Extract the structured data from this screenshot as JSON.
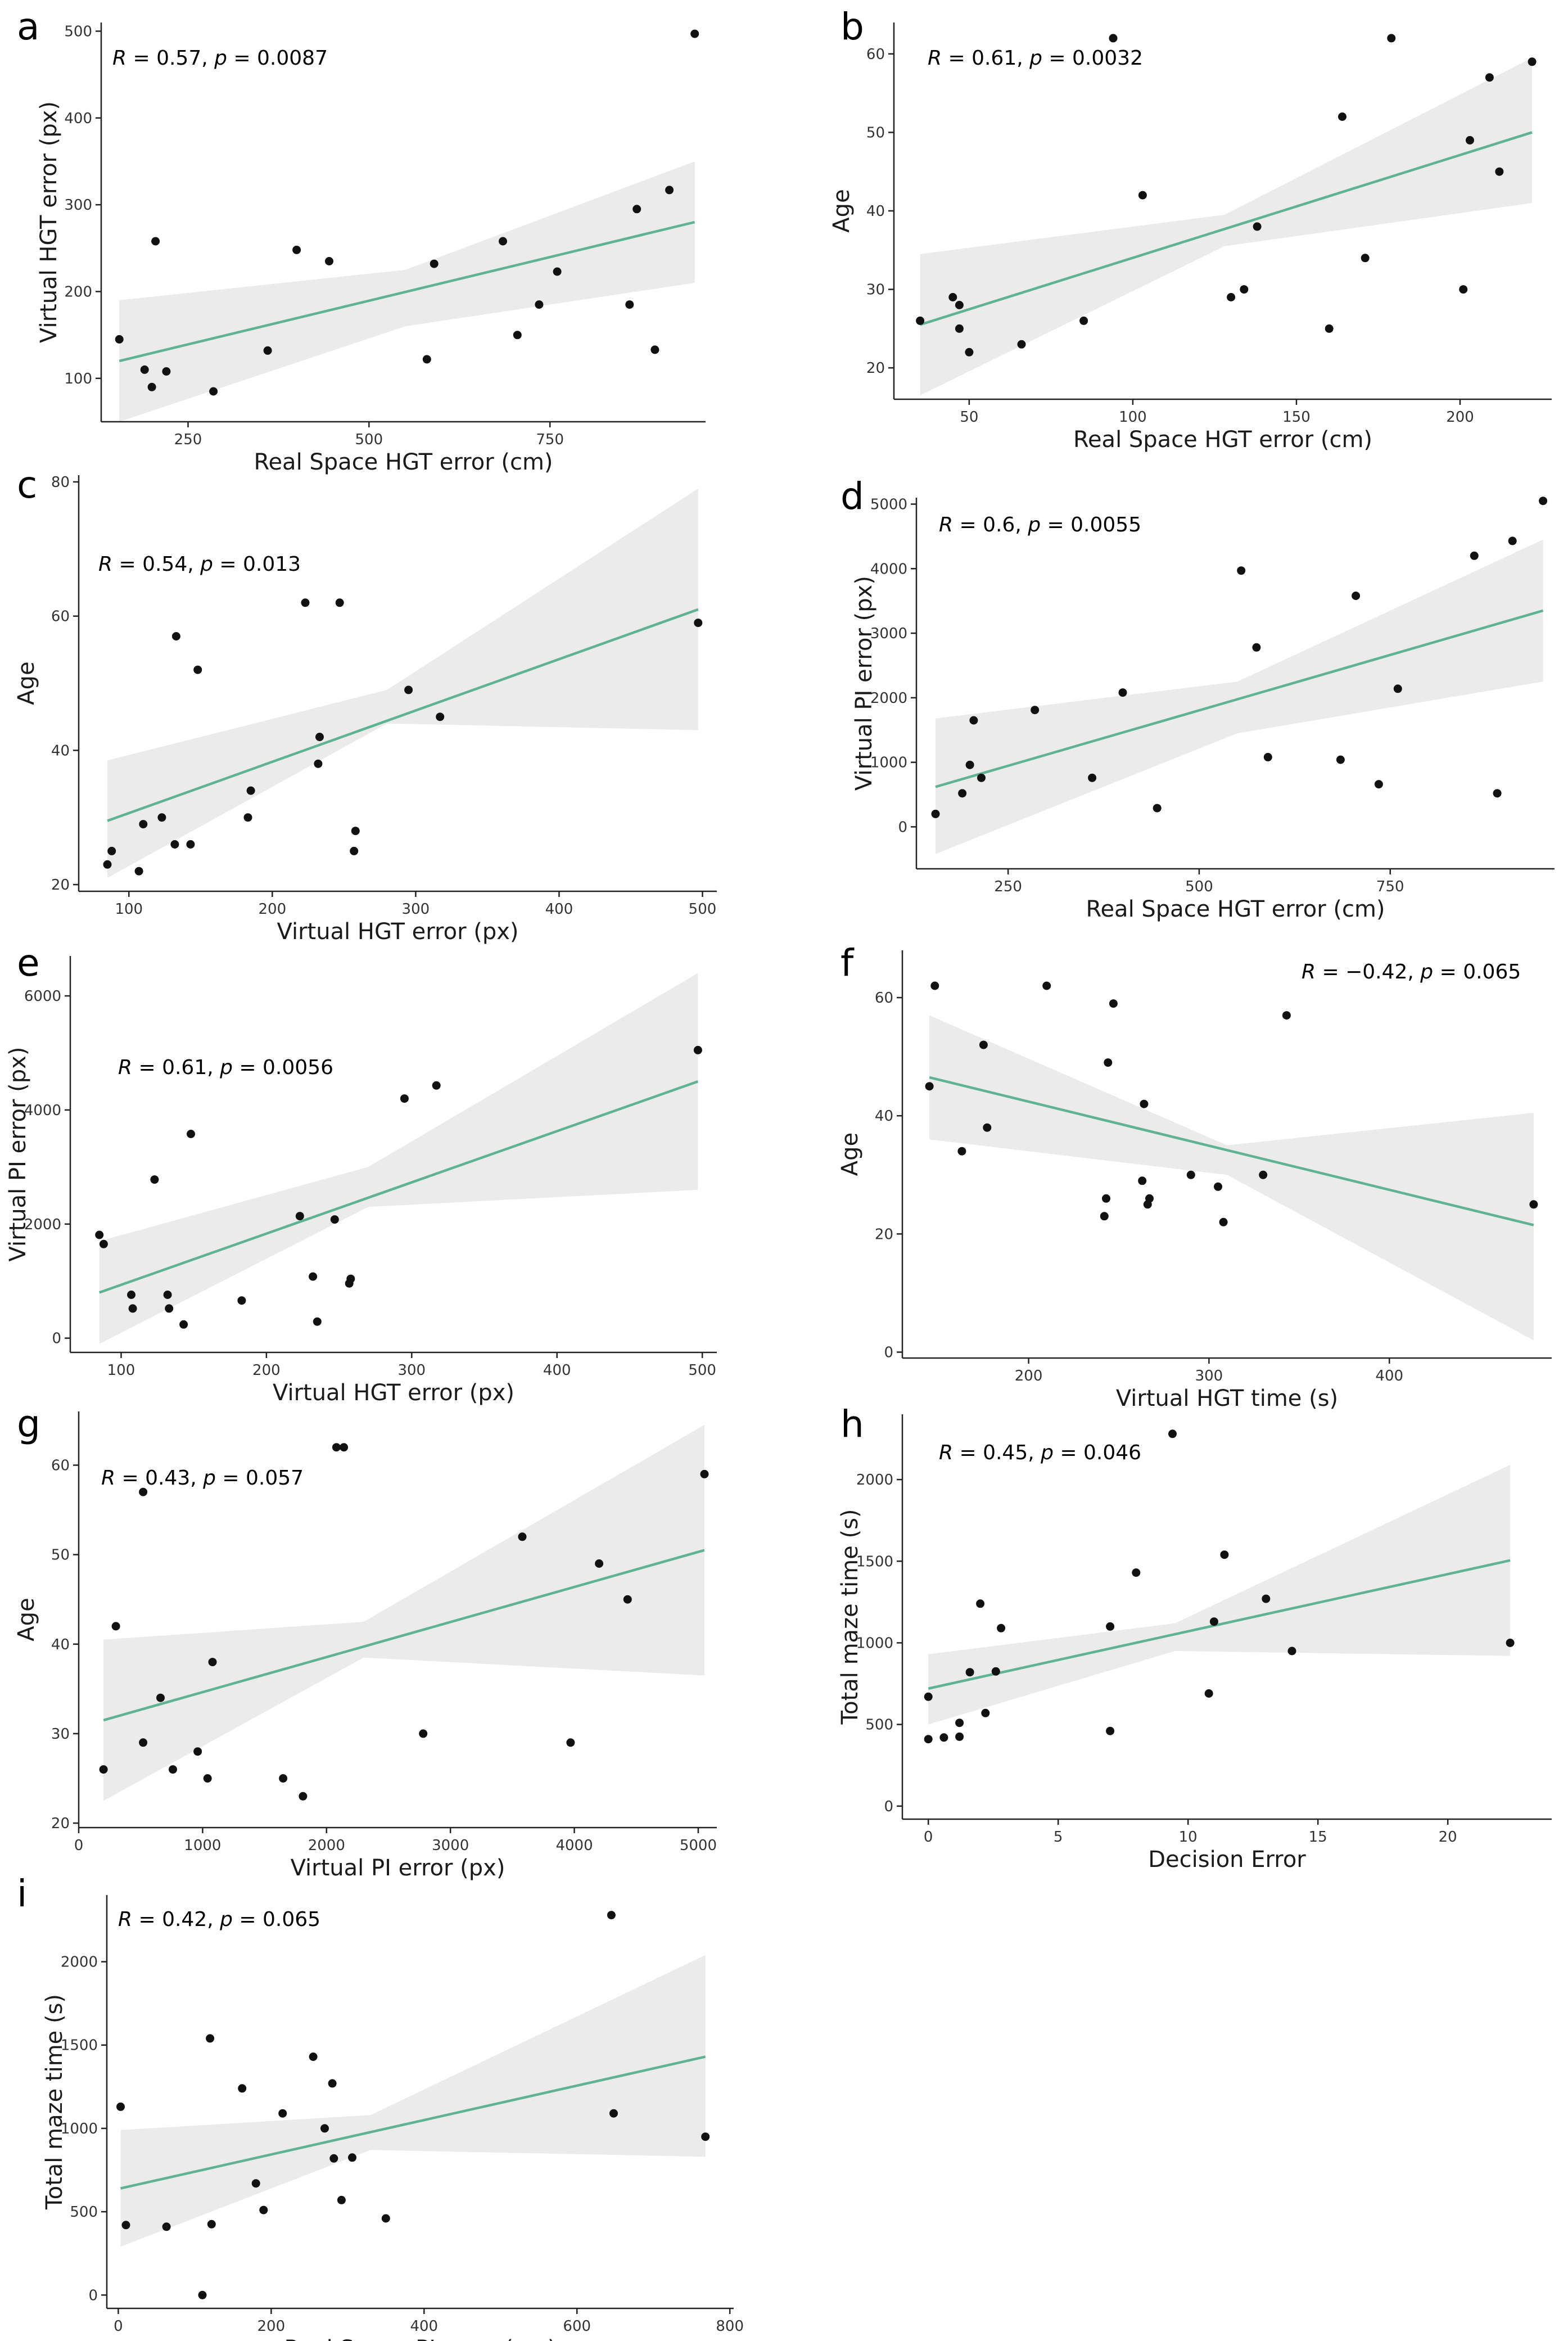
{
  "chart_data": [
    {
      "panel": "a",
      "type": "scatter",
      "xlabel": "Real Space HGT error (cm)",
      "ylabel": "Virtual HGT error (px)",
      "stat": {
        "r": "0.57",
        "p": "0.0087"
      },
      "xlim": [
        130,
        965
      ],
      "ylim": [
        50,
        510
      ],
      "xticks": [
        250,
        500,
        750
      ],
      "yticks": [
        100,
        200,
        300,
        400,
        500
      ],
      "x": [
        155,
        190,
        200,
        205,
        220,
        285,
        360,
        400,
        445,
        580,
        590,
        685,
        705,
        735,
        760,
        860,
        870,
        895,
        915,
        950
      ],
      "y": [
        145,
        110,
        90,
        258,
        108,
        85,
        132,
        248,
        235,
        122,
        232,
        258,
        150,
        185,
        223,
        185,
        295,
        133,
        317,
        497
      ],
      "fit": {
        "x0": 155,
        "y0": 120,
        "x1": 950,
        "y1": 280
      },
      "band": {
        "lower": [
          [
            155,
            50
          ],
          [
            550,
            160
          ],
          [
            950,
            210
          ]
        ],
        "upper": [
          [
            155,
            190
          ],
          [
            550,
            225
          ],
          [
            950,
            350
          ]
        ]
      }
    },
    {
      "panel": "b",
      "type": "scatter",
      "xlabel": "Real Space HGT error (cm)",
      "ylabel": "Age",
      "stat": {
        "r": "0.61",
        "p": "0.0032"
      },
      "xlim": [
        27,
        228
      ],
      "ylim": [
        16,
        64
      ],
      "xticks": [
        50,
        100,
        150,
        200
      ],
      "yticks": [
        20,
        30,
        40,
        50,
        60
      ],
      "x": [
        35,
        45,
        47,
        47,
        50,
        66,
        85,
        94,
        103,
        130,
        134,
        138,
        160,
        164,
        171,
        179,
        201,
        203,
        209,
        212,
        222
      ],
      "y": [
        26,
        29,
        28,
        25,
        22,
        23,
        26,
        62,
        42,
        29,
        30,
        38,
        25,
        52,
        34,
        62,
        30,
        49,
        57,
        45,
        59
      ],
      "fit": {
        "x0": 35,
        "y0": 25.5,
        "x1": 222,
        "y1": 50
      },
      "band": {
        "lower": [
          [
            35,
            16.5
          ],
          [
            128,
            35.5
          ],
          [
            222,
            41
          ]
        ],
        "upper": [
          [
            35,
            34.5
          ],
          [
            128,
            39.5
          ],
          [
            222,
            59.5
          ]
        ]
      }
    },
    {
      "panel": "c",
      "type": "scatter",
      "xlabel": "Virtual HGT error (px)",
      "ylabel": "Age",
      "stat": {
        "r": "0.54",
        "p": "0.013"
      },
      "xlim": [
        65,
        510
      ],
      "ylim": [
        19,
        81
      ],
      "xticks": [
        100,
        200,
        300,
        400,
        500
      ],
      "yticks": [
        20,
        40,
        60,
        80
      ],
      "x": [
        85,
        88,
        107,
        110,
        123,
        132,
        133,
        143,
        148,
        183,
        185,
        223,
        232,
        233,
        247,
        257,
        258,
        295,
        317,
        497
      ],
      "y": [
        23,
        25,
        22,
        29,
        30,
        26,
        57,
        26,
        52,
        30,
        34,
        62,
        38,
        42,
        62,
        25,
        28,
        49,
        45,
        59
      ],
      "fit": {
        "x0": 85,
        "y0": 29.5,
        "x1": 497,
        "y1": 61
      },
      "band": {
        "lower": [
          [
            85,
            21
          ],
          [
            280,
            44
          ],
          [
            497,
            43
          ]
        ],
        "upper": [
          [
            85,
            38.5
          ],
          [
            280,
            49
          ],
          [
            497,
            79
          ]
        ]
      }
    },
    {
      "panel": "d",
      "type": "scatter",
      "xlabel": "Real Space HGT error (cm)",
      "ylabel": "Virtual PI error (px)",
      "stat": {
        "r": "0.6",
        "p": "0.0055"
      },
      "xlim": [
        130,
        965
      ],
      "ylim": [
        -650,
        5100
      ],
      "xticks": [
        250,
        500,
        750
      ],
      "yticks": [
        0,
        1000,
        2000,
        3000,
        4000,
        5000
      ],
      "x": [
        155,
        190,
        200,
        205,
        215,
        285,
        360,
        400,
        445,
        555,
        575,
        590,
        685,
        705,
        735,
        760,
        860,
        890,
        910,
        950
      ],
      "y": [
        200,
        520,
        960,
        1650,
        760,
        1810,
        760,
        2080,
        290,
        3970,
        2780,
        1080,
        1040,
        3580,
        660,
        2140,
        4200,
        520,
        4430,
        5050
      ],
      "fit": {
        "x0": 155,
        "y0": 620,
        "x1": 950,
        "y1": 3350
      },
      "band": {
        "lower": [
          [
            155,
            -420
          ],
          [
            550,
            1450
          ],
          [
            950,
            2250
          ]
        ],
        "upper": [
          [
            155,
            1680
          ],
          [
            550,
            2250
          ],
          [
            950,
            4450
          ]
        ]
      }
    },
    {
      "panel": "e",
      "type": "scatter",
      "xlabel": "Virtual HGT error (px)",
      "ylabel": "Virtual PI error (px)",
      "stat": {
        "r": "0.61",
        "p": "0.0056"
      },
      "xlim": [
        65,
        510
      ],
      "ylim": [
        -250,
        6700
      ],
      "xticks": [
        100,
        200,
        300,
        400,
        500
      ],
      "yticks": [
        0,
        2000,
        4000,
        6000
      ],
      "x": [
        85,
        88,
        107,
        108,
        123,
        132,
        133,
        143,
        148,
        183,
        223,
        232,
        235,
        247,
        257,
        258,
        295,
        317,
        497
      ],
      "y": [
        1810,
        1650,
        760,
        520,
        2780,
        760,
        520,
        240,
        3580,
        660,
        2140,
        1080,
        290,
        2080,
        960,
        1040,
        4200,
        4430,
        5050
      ],
      "fit": {
        "x0": 85,
        "y0": 800,
        "x1": 497,
        "y1": 4500
      },
      "band": {
        "lower": [
          [
            85,
            -100
          ],
          [
            270,
            2300
          ],
          [
            497,
            2600
          ]
        ],
        "upper": [
          [
            85,
            1700
          ],
          [
            270,
            3000
          ],
          [
            497,
            6400
          ]
        ]
      }
    },
    {
      "panel": "f",
      "type": "scatter",
      "xlabel": "Virtual HGT time (s)",
      "ylabel": "Age",
      "stat": {
        "r": "−0.42",
        "p": "0.065"
      },
      "xlim": [
        130,
        490
      ],
      "ylim": [
        -1,
        68
      ],
      "xticks": [
        200,
        300,
        400
      ],
      "yticks": [
        0,
        20,
        40,
        60
      ],
      "x": [
        145,
        148,
        163,
        175,
        177,
        210,
        242,
        243,
        244,
        247,
        263,
        264,
        266,
        267,
        290,
        305,
        308,
        330,
        343,
        480
      ],
      "y": [
        45,
        62,
        34,
        52,
        38,
        62,
        23,
        26,
        49,
        59,
        29,
        42,
        25,
        26,
        30,
        28,
        22,
        30,
        57,
        25
      ],
      "fit": {
        "x0": 145,
        "y0": 46.5,
        "x1": 480,
        "y1": 21.5
      },
      "band": {
        "lower": [
          [
            145,
            36
          ],
          [
            310,
            30
          ],
          [
            480,
            2
          ]
        ],
        "upper": [
          [
            145,
            57
          ],
          [
            310,
            35
          ],
          [
            480,
            40.5
          ]
        ]
      }
    },
    {
      "panel": "g",
      "type": "scatter",
      "xlabel": "Virtual PI error (px)",
      "ylabel": "Age",
      "stat": {
        "r": "0.43",
        "p": "0.057"
      },
      "xlim": [
        0,
        5150
      ],
      "ylim": [
        19.5,
        66
      ],
      "xticks": [
        0,
        1000,
        2000,
        3000,
        4000,
        5000
      ],
      "yticks": [
        20,
        30,
        40,
        50,
        60
      ],
      "x": [
        200,
        300,
        520,
        520,
        660,
        760,
        960,
        1040,
        1080,
        1650,
        1810,
        2080,
        2140,
        2780,
        3580,
        3970,
        4200,
        4430,
        5050
      ],
      "y": [
        26,
        42,
        29,
        57,
        34,
        26,
        28,
        25,
        38,
        25,
        23,
        62,
        62,
        30,
        52,
        29,
        49,
        45,
        59
      ],
      "fit": {
        "x0": 200,
        "y0": 31.5,
        "x1": 5050,
        "y1": 50.5
      },
      "band": {
        "lower": [
          [
            200,
            22.5
          ],
          [
            2300,
            38.5
          ],
          [
            5050,
            36.5
          ]
        ],
        "upper": [
          [
            200,
            40.5
          ],
          [
            2300,
            42.5
          ],
          [
            5050,
            64.5
          ]
        ]
      }
    },
    {
      "panel": "h",
      "type": "scatter",
      "xlabel": "Decision Error",
      "ylabel": "Total maze time (s)",
      "stat": {
        "r": "0.45",
        "p": "0.046"
      },
      "xlim": [
        -1,
        24
      ],
      "ylim": [
        -80,
        2400
      ],
      "xticks": [
        0,
        5,
        10,
        15,
        20
      ],
      "yticks": [
        0,
        500,
        1000,
        1500,
        2000
      ],
      "x": [
        0,
        0,
        0.6,
        1.2,
        1.2,
        1.6,
        2,
        2.2,
        2.6,
        2.8,
        7,
        7,
        8,
        9.4,
        10.8,
        11,
        11.4,
        13,
        14,
        22.4
      ],
      "y": [
        670,
        410,
        420,
        425,
        510,
        820,
        1240,
        570,
        825,
        1090,
        1100,
        460,
        1430,
        2280,
        690,
        1130,
        1540,
        1270,
        950,
        1000
      ],
      "fit": {
        "x0": 0,
        "y0": 720,
        "x1": 22.4,
        "y1": 1505
      },
      "band": {
        "lower": [
          [
            0,
            500
          ],
          [
            9.5,
            950
          ],
          [
            22.4,
            920
          ]
        ],
        "upper": [
          [
            0,
            930
          ],
          [
            9.5,
            1120
          ],
          [
            22.4,
            2090
          ]
        ]
      }
    },
    {
      "panel": "i",
      "type": "scatter",
      "xlabel": "Real Space PI error (cm)",
      "ylabel": "Total maze time (s)",
      "stat": {
        "r": "0.42",
        "p": "0.065"
      },
      "xlim": [
        -15,
        805
      ],
      "ylim": [
        -80,
        2400
      ],
      "xticks": [
        0,
        200,
        400,
        600,
        800
      ],
      "yticks": [
        0,
        500,
        1000,
        1500,
        2000
      ],
      "x": [
        3,
        10,
        63,
        110,
        120,
        122,
        162,
        180,
        190,
        215,
        255,
        270,
        280,
        282,
        292,
        306,
        350,
        645,
        648,
        768
      ],
      "y": [
        1130,
        420,
        410,
        0,
        1540,
        425,
        1240,
        670,
        510,
        1090,
        1430,
        1000,
        1270,
        820,
        570,
        825,
        460,
        2280,
        1090,
        950
      ],
      "fit": {
        "x0": 3,
        "y0": 640,
        "x1": 768,
        "y1": 1430
      },
      "band": {
        "lower": [
          [
            3,
            290
          ],
          [
            330,
            870
          ],
          [
            768,
            830
          ]
        ],
        "upper": [
          [
            3,
            990
          ],
          [
            330,
            1080
          ],
          [
            768,
            2040
          ]
        ]
      }
    }
  ]
}
